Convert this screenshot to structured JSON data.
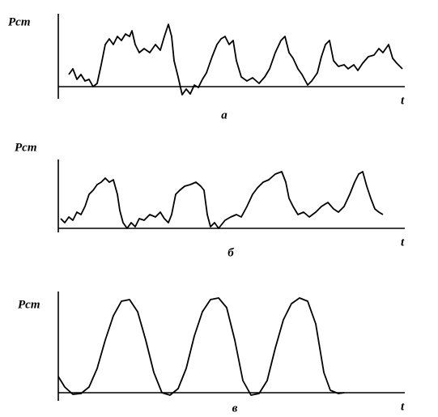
{
  "chart_data": [
    {
      "type": "line",
      "y_label": "Pст",
      "x_label": "t",
      "caption": "а",
      "xlim": [
        0,
        428
      ],
      "ylim": [
        -15,
        90
      ],
      "x": [
        13,
        18,
        23,
        28,
        33,
        38,
        43,
        48,
        53,
        58,
        63,
        68,
        73,
        78,
        83,
        88,
        91,
        95,
        100,
        106,
        113,
        120,
        126,
        131,
        136,
        140,
        143,
        148,
        153,
        158,
        163,
        168,
        173,
        178,
        183,
        190,
        196,
        201,
        206,
        211,
        216,
        220,
        226,
        233,
        240,
        248,
        255,
        261,
        268,
        275,
        280,
        285,
        290,
        296,
        301,
        308,
        313,
        320,
        325,
        330,
        335,
        340,
        346,
        353,
        358,
        365,
        370,
        376,
        383,
        390,
        396,
        401,
        408,
        413,
        418,
        425
      ],
      "values": [
        15,
        22,
        9,
        15,
        7,
        9,
        0,
        4,
        27,
        52,
        59,
        52,
        62,
        57,
        65,
        62,
        69,
        52,
        42,
        47,
        42,
        52,
        45,
        62,
        77,
        62,
        32,
        12,
        -10,
        -3,
        -9,
        2,
        -1,
        9,
        17,
        37,
        52,
        59,
        62,
        52,
        57,
        32,
        12,
        7,
        11,
        4,
        12,
        22,
        42,
        57,
        62,
        42,
        35,
        22,
        15,
        2,
        7,
        17,
        37,
        52,
        57,
        32,
        25,
        27,
        22,
        27,
        20,
        29,
        37,
        39,
        47,
        42,
        52,
        35,
        29,
        22
      ]
    },
    {
      "type": "line",
      "y_label": "Pст",
      "x_label": "t",
      "caption": "б",
      "xlim": [
        0,
        428
      ],
      "ylim": [
        -5,
        85
      ],
      "x": [
        3,
        8,
        13,
        18,
        23,
        28,
        33,
        38,
        43,
        48,
        53,
        58,
        63,
        68,
        73,
        76,
        80,
        85,
        90,
        95,
        100,
        106,
        113,
        120,
        126,
        131,
        136,
        140,
        145,
        150,
        156,
        163,
        170,
        176,
        180,
        184,
        188,
        193,
        198,
        206,
        213,
        220,
        226,
        233,
        240,
        246,
        253,
        260,
        268,
        276,
        281,
        285,
        290,
        296,
        303,
        310,
        318,
        325,
        333,
        340,
        346,
        353,
        360,
        366,
        371,
        376,
        381,
        386,
        391,
        396,
        401
      ],
      "values": [
        12,
        7,
        14,
        10,
        20,
        17,
        27,
        42,
        47,
        54,
        57,
        62,
        57,
        60,
        42,
        22,
        7,
        0,
        7,
        2,
        12,
        10,
        17,
        14,
        20,
        12,
        7,
        17,
        42,
        47,
        52,
        54,
        57,
        52,
        47,
        17,
        2,
        7,
        0,
        10,
        14,
        17,
        14,
        27,
        42,
        50,
        57,
        60,
        67,
        70,
        57,
        37,
        27,
        17,
        20,
        14,
        20,
        27,
        32,
        24,
        20,
        27,
        42,
        57,
        67,
        70,
        52,
        37,
        24,
        20,
        17
      ]
    },
    {
      "type": "line",
      "y_label": "Pст",
      "x_label": "t",
      "caption": "в",
      "xlim": [
        0,
        428
      ],
      "ylim": [
        -10,
        125
      ],
      "x": [
        0,
        8,
        18,
        28,
        38,
        48,
        58,
        68,
        78,
        88,
        98,
        108,
        118,
        128,
        138,
        148,
        158,
        168,
        178,
        188,
        198,
        208,
        218,
        228,
        238,
        248,
        258,
        268,
        278,
        288,
        298,
        308,
        318,
        328,
        336,
        346,
        353
      ],
      "values": [
        20,
        7,
        -2,
        -1,
        7,
        30,
        65,
        95,
        113,
        115,
        100,
        65,
        25,
        0,
        -3,
        5,
        30,
        70,
        100,
        115,
        117,
        105,
        65,
        15,
        -3,
        -1,
        15,
        55,
        90,
        110,
        117,
        113,
        85,
        25,
        3,
        -1,
        0
      ]
    }
  ]
}
